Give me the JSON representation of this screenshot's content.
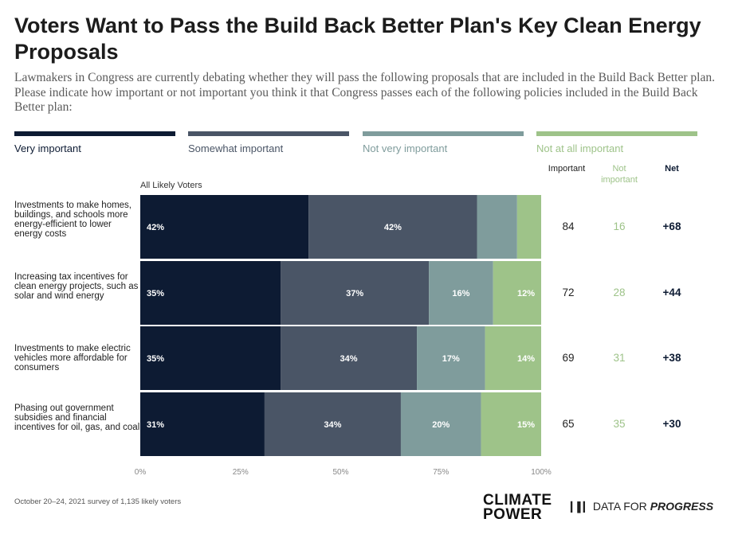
{
  "title": "Voters Want to Pass the Build Back Better Plan's Key Clean Energy Proposals",
  "subtitle": "Lawmakers in Congress are currently debating whether they will pass the following proposals that are included in the Build Back Better plan. Please indicate how important or not important you think it that Congress passes each of the following policies included in the Build Back Better plan:",
  "legend": [
    {
      "label": "Very important",
      "color": "#0d1b33"
    },
    {
      "label": "Somewhat important",
      "color": "#4a5566"
    },
    {
      "label": "Not very important",
      "color": "#7f9c9c"
    },
    {
      "label": "Not at all important",
      "color": "#9ec389"
    }
  ],
  "columns": {
    "important": "Important",
    "not_important": "Not important",
    "net": "Net"
  },
  "subgroup_label": "All Likely Voters",
  "chart_data": {
    "type": "bar",
    "orientation": "horizontal-stacked-100",
    "categories": [
      "Investments to make homes, buildings, and schools more energy-efficient to lower energy costs",
      "Increasing tax incentives for clean energy projects, such as solar and wind energy",
      "Investments to make electric vehicles more affordable for consumers",
      "Phasing out government subsidies and financial incentives for oil, gas, and coal"
    ],
    "series": [
      {
        "name": "Very important",
        "values": [
          42,
          35,
          35,
          31
        ],
        "labels": [
          "42%",
          "35%",
          "35%",
          "31%"
        ]
      },
      {
        "name": "Somewhat important",
        "values": [
          42,
          37,
          34,
          34
        ],
        "labels": [
          "42%",
          "37%",
          "34%",
          "34%"
        ]
      },
      {
        "name": "Not very important",
        "values": [
          10,
          16,
          17,
          20
        ],
        "labels": [
          "",
          "16%",
          "17%",
          "20%"
        ]
      },
      {
        "name": "Not at all important",
        "values": [
          6,
          12,
          14,
          15
        ],
        "labels": [
          "",
          "12%",
          "14%",
          "15%"
        ]
      }
    ],
    "xlim": [
      0,
      100
    ],
    "xticks": [
      "0%",
      "25%",
      "50%",
      "75%",
      "100%"
    ],
    "important": [
      "84",
      "72",
      "69",
      "65"
    ],
    "not_important": [
      "16",
      "28",
      "31",
      "35"
    ],
    "net": [
      "+68",
      "+44",
      "+38",
      "+30"
    ]
  },
  "footnote": "October 20–24, 2021 survey of 1,135 likely voters",
  "logos": {
    "climate_power_line1": "CLIMATE",
    "climate_power_line2": "POWER",
    "dfp_prefix": "DATA FOR",
    "dfp_suffix": "PROGRESS"
  }
}
